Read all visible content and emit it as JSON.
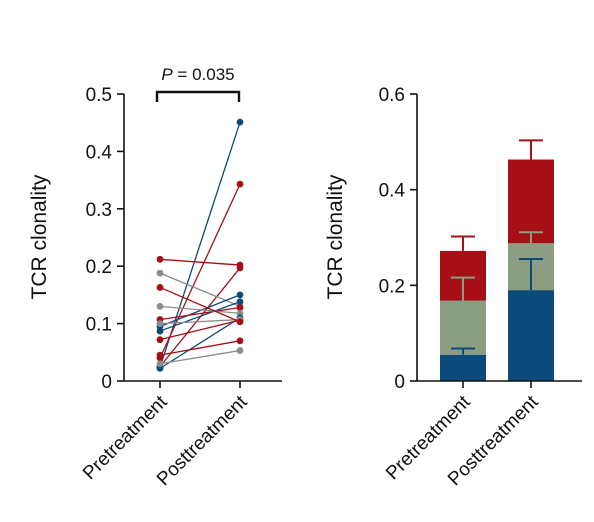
{
  "colors": {
    "red": "#a50f15",
    "blue": "#0b4a7a",
    "gray": "#8c8c8c",
    "sage": "#8c9e82",
    "axis": "#111111"
  },
  "chart_data": [
    {
      "type": "line",
      "ylabel": "TCR clonality",
      "ylim": [
        0,
        0.5
      ],
      "yticks": [
        0,
        0.1,
        0.2,
        0.3,
        0.4,
        0.5
      ],
      "ytick_labels": [
        "0",
        "0.1",
        "0.2",
        "0.3",
        "0.4",
        "0.5"
      ],
      "categories": [
        "Pretreatment",
        "Posttreatment"
      ],
      "annotation": {
        "p_label": "P",
        "p_text": " = 0.035"
      },
      "pairs": [
        {
          "color": "blue",
          "values": [
            0.024,
            0.451
          ]
        },
        {
          "color": "red",
          "values": [
            0.04,
            0.343
          ]
        },
        {
          "color": "red",
          "values": [
            0.212,
            0.202
          ]
        },
        {
          "color": "red",
          "values": [
            0.025,
            0.197
          ]
        },
        {
          "color": "gray",
          "values": [
            0.188,
            0.13
          ]
        },
        {
          "color": "blue",
          "values": [
            0.095,
            0.15
          ]
        },
        {
          "color": "blue",
          "values": [
            0.087,
            0.138
          ]
        },
        {
          "color": "red",
          "values": [
            0.107,
            0.128
          ]
        },
        {
          "color": "gray",
          "values": [
            0.13,
            0.118
          ]
        },
        {
          "color": "blue",
          "values": [
            0.022,
            0.11
          ]
        },
        {
          "color": "red",
          "values": [
            0.072,
            0.106
          ]
        },
        {
          "color": "gray",
          "values": [
            0.1,
            0.107
          ]
        },
        {
          "color": "red",
          "values": [
            0.163,
            0.103
          ]
        },
        {
          "color": "red",
          "values": [
            0.045,
            0.07
          ]
        },
        {
          "color": "gray",
          "values": [
            0.03,
            0.053
          ]
        }
      ]
    },
    {
      "type": "bar",
      "ylabel": "TCR clonality",
      "ylim": [
        0,
        0.6
      ],
      "yticks": [
        0,
        0.2,
        0.4,
        0.6
      ],
      "ytick_labels": [
        "0",
        "0.2",
        "0.4",
        "0.6"
      ],
      "categories": [
        "Pretreatment",
        "Posttreatment"
      ],
      "stacked": true,
      "segments": [
        {
          "color": "blue",
          "values": [
            0.055,
            0.19
          ],
          "err": [
            0.013,
            0.065
          ]
        },
        {
          "color": "sage",
          "values": [
            0.113,
            0.098
          ],
          "err": [
            0.048,
            0.023
          ]
        },
        {
          "color": "red",
          "values": [
            0.104,
            0.175
          ],
          "err": [
            0.03,
            0.04
          ]
        }
      ]
    }
  ]
}
